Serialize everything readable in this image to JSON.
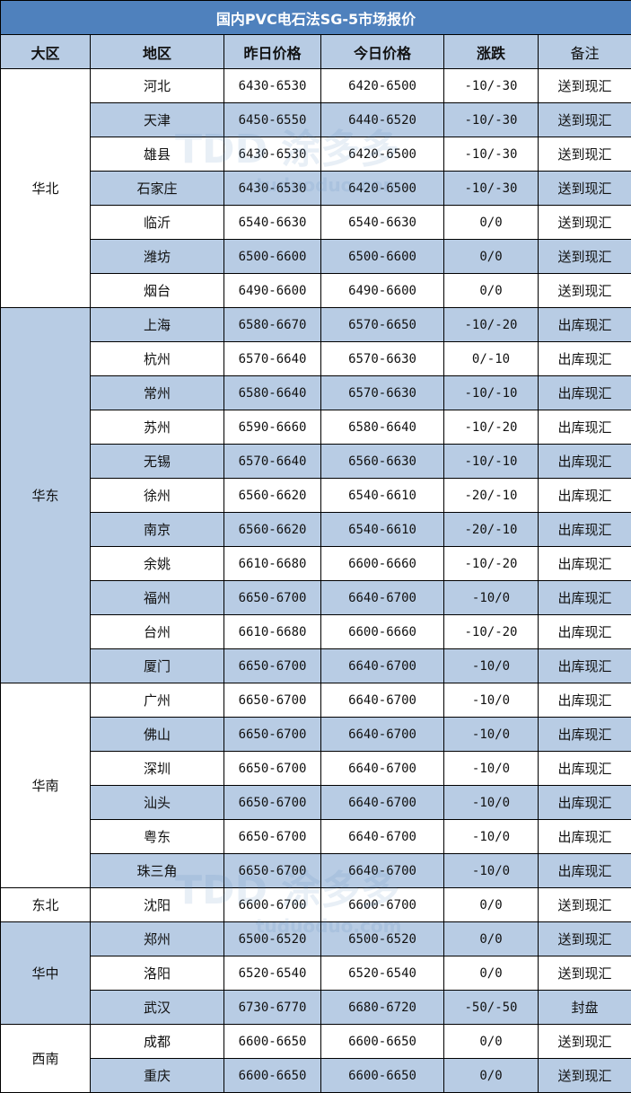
{
  "title": "国内PVC电石法SG-5市场报价",
  "headers": [
    "大区",
    "地区",
    "昨日价格",
    "今日价格",
    "涨跌",
    "备注"
  ],
  "watermark": {
    "logo": "TDD",
    "name": "涂多多",
    "site": "tuduoduo.com"
  },
  "colors": {
    "title_bg": "#4f81bd",
    "row_alt": "#b8cce4"
  },
  "groups": [
    {
      "region": "华北",
      "rows": [
        [
          "河北",
          "6430-6530",
          "6420-6500",
          "-10/-30",
          "送到现汇"
        ],
        [
          "天津",
          "6450-6550",
          "6440-6520",
          "-10/-30",
          "送到现汇"
        ],
        [
          "雄县",
          "6430-6530",
          "6420-6500",
          "-10/-30",
          "送到现汇"
        ],
        [
          "石家庄",
          "6430-6530",
          "6420-6500",
          "-10/-30",
          "送到现汇"
        ],
        [
          "临沂",
          "6540-6630",
          "6540-6630",
          "0/0",
          "送到现汇"
        ],
        [
          "潍坊",
          "6500-6600",
          "6500-6600",
          "0/0",
          "送到现汇"
        ],
        [
          "烟台",
          "6490-6600",
          "6490-6600",
          "0/0",
          "送到现汇"
        ]
      ]
    },
    {
      "region": "华东",
      "rows": [
        [
          "上海",
          "6580-6670",
          "6570-6650",
          "-10/-20",
          "出库现汇"
        ],
        [
          "杭州",
          "6570-6640",
          "6570-6630",
          "0/-10",
          "出库现汇"
        ],
        [
          "常州",
          "6580-6640",
          "6570-6630",
          "-10/-10",
          "出库现汇"
        ],
        [
          "苏州",
          "6590-6660",
          "6580-6640",
          "-10/-20",
          "出库现汇"
        ],
        [
          "无锡",
          "6570-6640",
          "6560-6630",
          "-10/-10",
          "出库现汇"
        ],
        [
          "徐州",
          "6560-6620",
          "6540-6610",
          "-20/-10",
          "出库现汇"
        ],
        [
          "南京",
          "6560-6620",
          "6540-6610",
          "-20/-10",
          "出库现汇"
        ],
        [
          "余姚",
          "6610-6680",
          "6600-6660",
          "-10/-20",
          "出库现汇"
        ],
        [
          "福州",
          "6650-6700",
          "6640-6700",
          "-10/0",
          "出库现汇"
        ],
        [
          "台州",
          "6610-6680",
          "6600-6660",
          "-10/-20",
          "出库现汇"
        ],
        [
          "厦门",
          "6650-6700",
          "6640-6700",
          "-10/0",
          "出库现汇"
        ]
      ]
    },
    {
      "region": "华南",
      "rows": [
        [
          "广州",
          "6650-6700",
          "6640-6700",
          "-10/0",
          "出库现汇"
        ],
        [
          "佛山",
          "6650-6700",
          "6640-6700",
          "-10/0",
          "出库现汇"
        ],
        [
          "深圳",
          "6650-6700",
          "6640-6700",
          "-10/0",
          "出库现汇"
        ],
        [
          "汕头",
          "6650-6700",
          "6640-6700",
          "-10/0",
          "出库现汇"
        ],
        [
          "粤东",
          "6650-6700",
          "6640-6700",
          "-10/0",
          "出库现汇"
        ],
        [
          "珠三角",
          "6650-6700",
          "6640-6700",
          "-10/0",
          "出库现汇"
        ]
      ]
    },
    {
      "region": "东北",
      "rows": [
        [
          "沈阳",
          "6600-6700",
          "6600-6700",
          "0/0",
          "送到现汇"
        ]
      ]
    },
    {
      "region": "华中",
      "rows": [
        [
          "郑州",
          "6500-6520",
          "6500-6520",
          "0/0",
          "送到现汇"
        ],
        [
          "洛阳",
          "6520-6540",
          "6520-6540",
          "0/0",
          "送到现汇"
        ],
        [
          "武汉",
          "6730-6770",
          "6680-6720",
          "-50/-50",
          "封盘"
        ]
      ]
    },
    {
      "region": "西南",
      "rows": [
        [
          "成都",
          "6600-6650",
          "6600-6650",
          "0/0",
          "送到现汇"
        ],
        [
          "重庆",
          "6600-6650",
          "6600-6650",
          "0/0",
          "送到现汇"
        ]
      ]
    }
  ]
}
